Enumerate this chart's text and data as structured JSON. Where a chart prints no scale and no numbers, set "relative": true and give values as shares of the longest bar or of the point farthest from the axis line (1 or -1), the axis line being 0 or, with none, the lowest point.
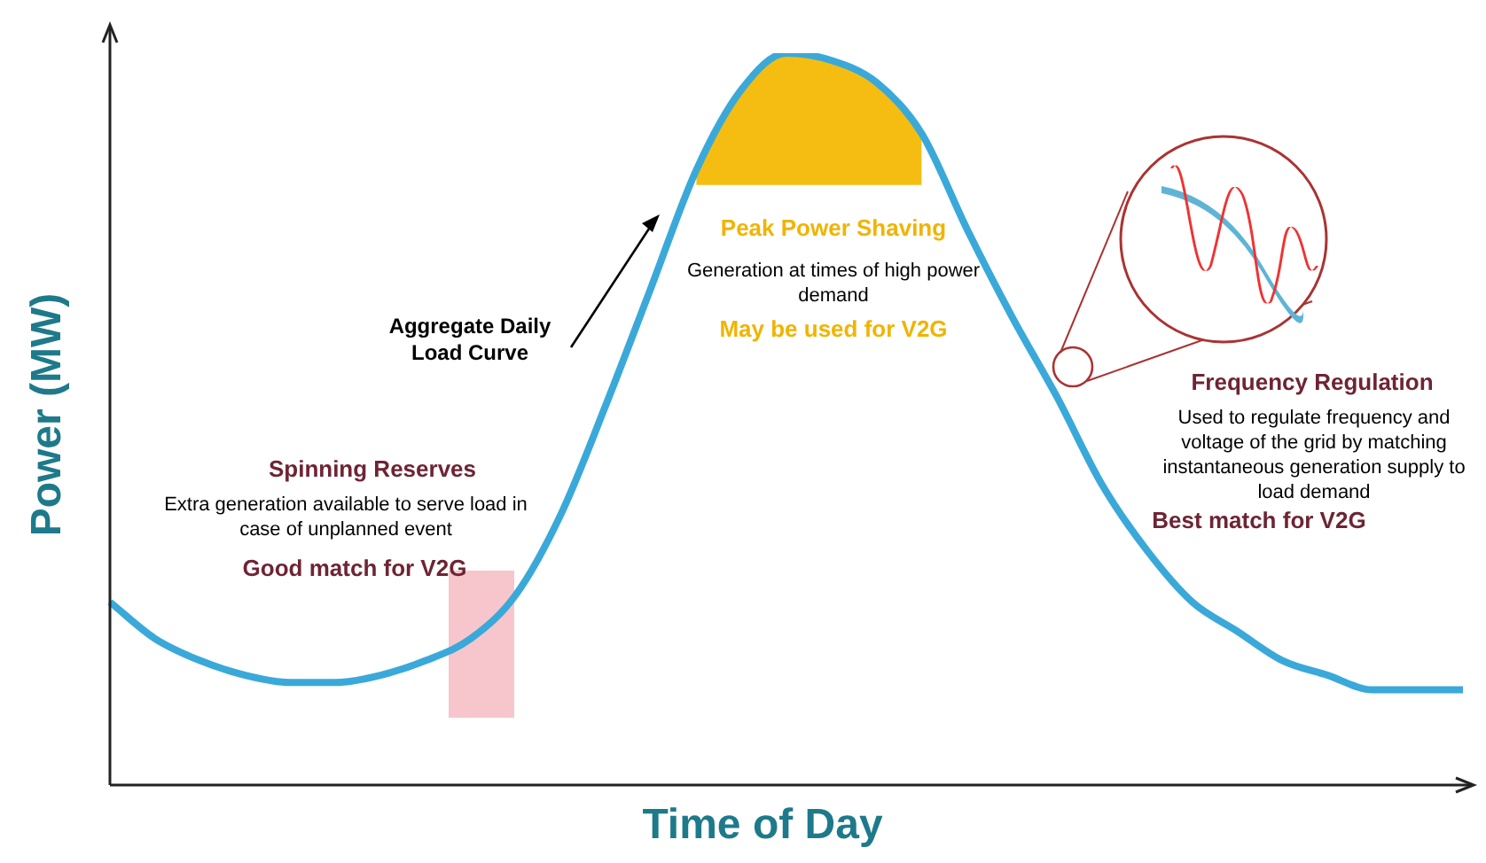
{
  "chart_data": {
    "type": "line",
    "relative": true,
    "xlabel": "Time of Day",
    "ylabel": "Power (MW)",
    "legend": false,
    "marker": "none",
    "line_style": "solid",
    "categories": [
      null,
      null,
      null,
      null,
      null,
      null,
      null,
      null,
      null,
      null,
      null,
      null,
      null,
      null,
      null,
      null,
      null,
      null,
      null,
      null,
      null,
      null,
      null,
      null,
      null,
      null,
      null,
      null,
      null,
      null,
      null
    ],
    "series": [
      {
        "name": "Aggregate Daily Load Curve",
        "color": "#3aa9d9",
        "values": [
          0.25,
          0.2,
          0.17,
          0.15,
          0.14,
          0.14,
          0.15,
          0.17,
          0.2,
          0.26,
          0.37,
          0.52,
          0.68,
          0.84,
          0.95,
          1,
          0.99,
          0.96,
          0.89,
          0.76,
          0.64,
          0.53,
          0.41,
          0.32,
          0.25,
          0.21,
          0.17,
          0.15,
          0.13,
          0.13,
          0.13
        ],
        "lower": [
          null,
          null,
          null,
          null,
          null,
          null,
          null,
          null,
          null,
          null,
          null,
          null,
          null,
          0.82,
          0.82,
          0.82,
          0.82,
          0.82,
          0.82,
          null,
          null,
          null,
          null,
          null,
          null,
          null,
          null,
          null,
          null,
          null,
          null
        ],
        "upper": [
          null,
          null,
          null,
          null,
          null,
          null,
          null,
          null,
          null,
          null,
          null,
          null,
          null,
          0.84,
          0.95,
          1,
          0.99,
          0.96,
          0.89,
          null,
          null,
          null,
          null,
          null,
          null,
          null,
          null,
          null,
          null,
          null,
          null
        ]
      }
    ],
    "annotations": [
      "Peak Power Shaving",
      "Generation at times of high power demand",
      "May be used for V2G",
      "Spinning Reserves",
      "Extra generation available to serve load in case of unplanned event",
      "Good match for V2G",
      "Frequency Regulation",
      "Used to regulate frequency and voltage of the grid by matching instantaneous generation supply to load demand",
      "Best match for V2G"
    ]
  }
}
